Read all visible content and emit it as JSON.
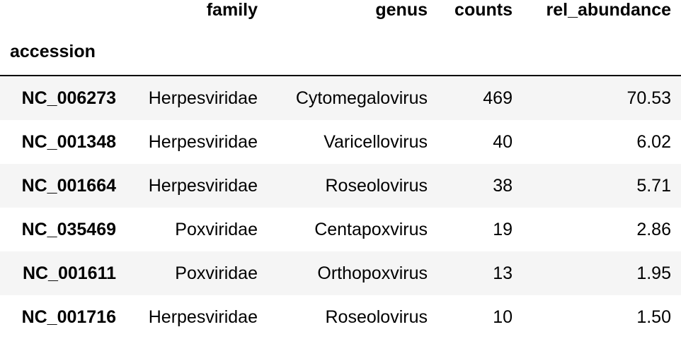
{
  "table": {
    "columns": [
      "family",
      "genus",
      "counts",
      "rel_abundance"
    ],
    "index_name": "accession",
    "rows": [
      {
        "accession": "NC_006273",
        "family": "Herpesviridae",
        "genus": "Cytomegalovirus",
        "counts": "469",
        "rel_abundance": "70.53"
      },
      {
        "accession": "NC_001348",
        "family": "Herpesviridae",
        "genus": "Varicellovirus",
        "counts": "40",
        "rel_abundance": "6.02"
      },
      {
        "accession": "NC_001664",
        "family": "Herpesviridae",
        "genus": "Roseolovirus",
        "counts": "38",
        "rel_abundance": "5.71"
      },
      {
        "accession": "NC_035469",
        "family": "Poxviridae",
        "genus": "Centapoxvirus",
        "counts": "19",
        "rel_abundance": "2.86"
      },
      {
        "accession": "NC_001611",
        "family": "Poxviridae",
        "genus": "Orthopoxvirus",
        "counts": "13",
        "rel_abundance": "1.95"
      },
      {
        "accession": "NC_001716",
        "family": "Herpesviridae",
        "genus": "Roseolovirus",
        "counts": "10",
        "rel_abundance": "1.50"
      }
    ]
  }
}
